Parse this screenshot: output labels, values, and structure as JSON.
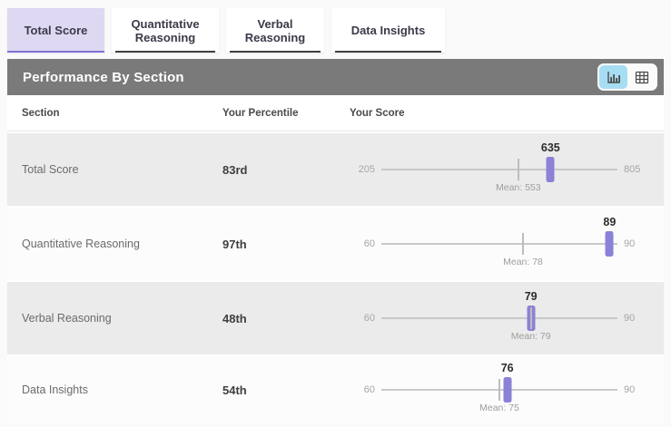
{
  "tabs": [
    {
      "label": "Total Score",
      "active": true
    },
    {
      "label": "Quantitative Reasoning",
      "active": false
    },
    {
      "label": "Verbal Reasoning",
      "active": false
    },
    {
      "label": "Data Insights",
      "active": false
    }
  ],
  "panel": {
    "title": "Performance By Section",
    "view_toggle": {
      "active_view": "chart",
      "buttons": [
        {
          "icon": "bar-chart-icon",
          "view": "chart"
        },
        {
          "icon": "table-icon",
          "view": "table"
        }
      ]
    }
  },
  "table": {
    "columns": {
      "section": "Section",
      "percentile": "Your Percentile",
      "score": "Your Score"
    },
    "rows": [
      {
        "section": "Total Score",
        "percentile": "83rd",
        "min": 205,
        "max": 805,
        "mean": 553,
        "mean_label": "Mean: 553",
        "score": 635
      },
      {
        "section": "Quantitative Reasoning",
        "percentile": "97th",
        "min": 60,
        "max": 90,
        "mean": 78,
        "mean_label": "Mean: 78",
        "score": 89
      },
      {
        "section": "Verbal Reasoning",
        "percentile": "48th",
        "min": 60,
        "max": 90,
        "mean": 79,
        "mean_label": "Mean: 79",
        "score": 79
      },
      {
        "section": "Data Insights",
        "percentile": "54th",
        "min": 60,
        "max": 90,
        "mean": 75,
        "mean_label": "Mean: 75",
        "score": 76
      }
    ]
  },
  "chart_data": {
    "type": "scatter",
    "title": "Performance By Section",
    "categories": [
      "Total Score",
      "Quantitative Reasoning",
      "Verbal Reasoning",
      "Data Insights"
    ],
    "series": [
      {
        "name": "Your Score",
        "values": [
          635,
          89,
          79,
          76
        ]
      },
      {
        "name": "Mean",
        "values": [
          553,
          78,
          79,
          75
        ]
      },
      {
        "name": "Your Percentile",
        "values": [
          "83rd",
          "97th",
          "48th",
          "54th"
        ]
      }
    ],
    "axis_ranges": [
      [
        205,
        805
      ],
      [
        60,
        90
      ],
      [
        60,
        90
      ],
      [
        60,
        90
      ]
    ]
  },
  "colors": {
    "accent_purple": "#8b81d6",
    "active_tab_bg": "#ded8f2",
    "active_tab_underline": "#7f73d2",
    "header_bar": "#7a7a7a",
    "toggle_active_bg": "#a7ddf3",
    "row_gray": "#ebebeb",
    "track_gray": "#c8c8c8"
  }
}
